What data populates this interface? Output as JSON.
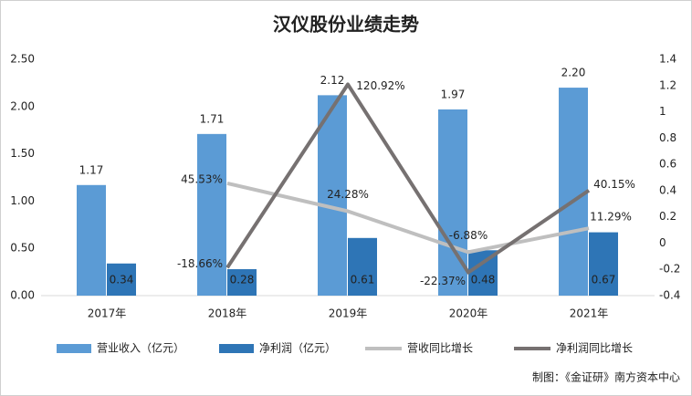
{
  "chart_data": {
    "type": "bar_line",
    "title": "汉仪股份业绩走势",
    "source": "制图：《金证研》南方资本中心",
    "categories": [
      "2017年",
      "2018年",
      "2019年",
      "2020年",
      "2021年"
    ],
    "ylim": [
      0,
      2.5
    ],
    "yticks": [
      {
        "value": 0,
        "label": "0.00"
      },
      {
        "value": 0.5,
        "label": "0.50"
      },
      {
        "value": 1,
        "label": "1.00"
      },
      {
        "value": 1.5,
        "label": "1.50"
      },
      {
        "value": 2,
        "label": "2.00"
      },
      {
        "value": 2.5,
        "label": "2.50"
      }
    ],
    "y2lim": [
      -0.4,
      1.4
    ],
    "y2ticks": [
      -0.4,
      -0.2,
      0,
      0.2,
      0.4,
      0.6,
      0.8,
      1,
      1.2,
      1.4
    ],
    "series": [
      {
        "name": "营业收入（亿元）",
        "type": "bar",
        "color": "#5b9bd5",
        "values": [
          1.17,
          1.71,
          2.12,
          1.97,
          2.2
        ],
        "value_labels": [
          "1.17",
          "1.71",
          "2.12",
          "1.97",
          "2.20"
        ]
      },
      {
        "name": "净利润（亿元）",
        "type": "bar",
        "color": "#2e75b6",
        "values": [
          0.34,
          0.28,
          0.61,
          0.48,
          0.67
        ]
      },
      {
        "name": "营收同比增长",
        "type": "line",
        "axis": "y2",
        "color": "#bfbfbf",
        "values": [
          null,
          0.4553,
          0.2428,
          -0.0688,
          0.1129
        ],
        "value_labels": [
          null,
          "45.53%",
          "24.28%",
          "-6.88%",
          "11.29%"
        ]
      },
      {
        "name": "净利润同比增长",
        "type": "line",
        "axis": "y2",
        "color": "#767171",
        "values": [
          null,
          -0.1866,
          1.2092,
          -0.2237,
          0.4015
        ],
        "value_labels": [
          null,
          "-18.66%",
          "120.92%",
          "-22.37%",
          "40.15%"
        ]
      }
    ]
  }
}
